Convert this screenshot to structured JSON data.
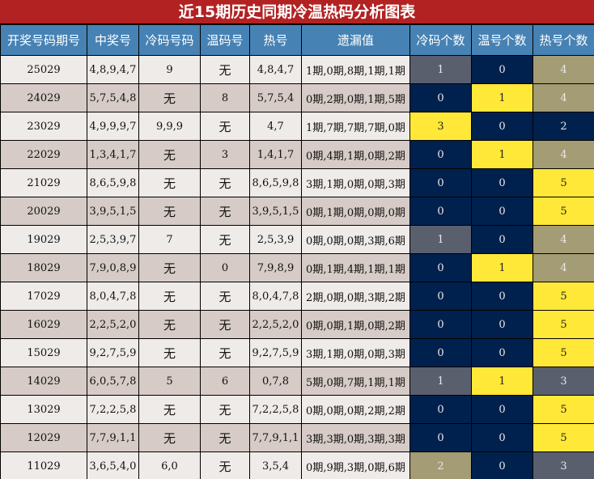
{
  "title": "近15期历史同期冷温热码分析图表",
  "headers": [
    "开奖号码期号",
    "中奖号",
    "冷码号码",
    "温码号",
    "热号",
    "遗漏值",
    "冷码个数",
    "温号个数",
    "热号个数"
  ],
  "colors": {
    "Y": "#ffe838",
    "N": "#00214d",
    "G": "#5a5f6e",
    "K": "#a39c74",
    "header": "#4682b4",
    "title": "#b22222"
  },
  "rows": [
    [
      "25029",
      "4,8,9,4,7",
      "9",
      "无",
      "4,8,4,7",
      "1期,0期,8期,1期,1期",
      "1",
      "0",
      "4",
      "G",
      "N",
      "K"
    ],
    [
      "24029",
      "5,7,5,4,8",
      "无",
      "8",
      "5,7,5,4",
      "0期,2期,0期,1期,5期",
      "0",
      "1",
      "4",
      "N",
      "Y",
      "K"
    ],
    [
      "23029",
      "4,9,9,9,7",
      "9,9,9",
      "无",
      "4,7",
      "1期,7期,7期,7期,0期",
      "3",
      "0",
      "2",
      "Y",
      "N",
      "N"
    ],
    [
      "22029",
      "1,3,4,1,7",
      "无",
      "3",
      "1,4,1,7",
      "0期,4期,1期,0期,2期",
      "0",
      "1",
      "4",
      "N",
      "Y",
      "K"
    ],
    [
      "21029",
      "8,6,5,9,8",
      "无",
      "无",
      "8,6,5,9,8",
      "3期,1期,0期,0期,3期",
      "0",
      "0",
      "5",
      "N",
      "N",
      "Y"
    ],
    [
      "20029",
      "3,9,5,1,5",
      "无",
      "无",
      "3,9,5,1,5",
      "0期,1期,0期,0期,0期",
      "0",
      "0",
      "5",
      "N",
      "N",
      "Y"
    ],
    [
      "19029",
      "2,5,3,9,7",
      "7",
      "无",
      "2,5,3,9",
      "0期,0期,0期,3期,6期",
      "1",
      "0",
      "4",
      "G",
      "N",
      "K"
    ],
    [
      "18029",
      "7,9,0,8,9",
      "无",
      "0",
      "7,9,8,9",
      "0期,1期,4期,1期,1期",
      "0",
      "1",
      "4",
      "N",
      "Y",
      "K"
    ],
    [
      "17029",
      "8,0,4,7,8",
      "无",
      "无",
      "8,0,4,7,8",
      "2期,0期,0期,3期,2期",
      "0",
      "0",
      "5",
      "N",
      "N",
      "Y"
    ],
    [
      "16029",
      "2,2,5,2,0",
      "无",
      "无",
      "2,2,5,2,0",
      "0期,0期,1期,0期,2期",
      "0",
      "0",
      "5",
      "N",
      "N",
      "Y"
    ],
    [
      "15029",
      "9,2,7,5,9",
      "无",
      "无",
      "9,2,7,5,9",
      "3期,1期,0期,0期,3期",
      "0",
      "0",
      "5",
      "N",
      "N",
      "Y"
    ],
    [
      "14029",
      "6,0,5,7,8",
      "5",
      "6",
      "0,7,8",
      "5期,0期,7期,1期,1期",
      "1",
      "1",
      "3",
      "G",
      "Y",
      "G"
    ],
    [
      "13029",
      "7,2,2,5,8",
      "无",
      "无",
      "7,2,2,5,8",
      "0期,0期,0期,2期,2期",
      "0",
      "0",
      "5",
      "N",
      "N",
      "Y"
    ],
    [
      "12029",
      "7,7,9,1,1",
      "无",
      "无",
      "7,7,9,1,1",
      "3期,3期,0期,3期,3期",
      "0",
      "0",
      "5",
      "N",
      "N",
      "Y"
    ],
    [
      "11029",
      "3,6,5,4,0",
      "6,0",
      "无",
      "3,5,4",
      "0期,9期,3期,0期,6期",
      "2",
      "0",
      "3",
      "K",
      "N",
      "G"
    ]
  ]
}
